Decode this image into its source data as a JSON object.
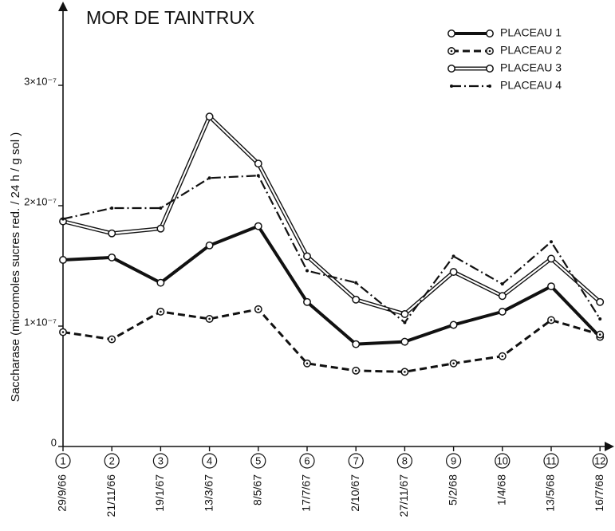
{
  "chart_data": {
    "type": "line",
    "title": "MOR DE TAINTRUX",
    "y_label": "Saccharase (micromoles sucres red. / 24 h / g sol )",
    "x_numbers": [
      "1",
      "2",
      "3",
      "4",
      "5",
      "6",
      "7",
      "8",
      "9",
      "10",
      "11",
      "12"
    ],
    "categories": [
      "29/9/66",
      "21/11/66",
      "19/1/67",
      "13/3/67",
      "8/5/67",
      "17/7/67",
      "2/10/67",
      "27/11/67",
      "5/2/68",
      "1/4/68",
      "13/5/68",
      "16/7/68"
    ],
    "series": [
      {
        "name": "PLACEAU 1",
        "color": "#111111",
        "style": "solid-thick",
        "marker": "open-circle",
        "values": [
          1.55e-07,
          1.57e-07,
          1.36e-07,
          1.67e-07,
          1.83e-07,
          1.2e-07,
          8.5e-08,
          8.7e-08,
          1.01e-07,
          1.12e-07,
          1.33e-07,
          9.1e-08
        ]
      },
      {
        "name": "PLACEAU 2",
        "color": "#111111",
        "style": "dashed",
        "marker": "dot-circle",
        "values": [
          9.5e-08,
          8.9e-08,
          1.12e-07,
          1.06e-07,
          1.14e-07,
          6.9e-08,
          6.3e-08,
          6.2e-08,
          6.9e-08,
          7.5e-08,
          1.05e-07,
          9.3e-08
        ]
      },
      {
        "name": "PLACEAU 3",
        "color": "#111111",
        "style": "double",
        "marker": "open-circle",
        "values": [
          1.87e-07,
          1.77e-07,
          1.81e-07,
          2.74e-07,
          2.35e-07,
          1.58e-07,
          1.22e-07,
          1.1e-07,
          1.45e-07,
          1.25e-07,
          1.56e-07,
          1.2e-07
        ]
      },
      {
        "name": "PLACEAU 4",
        "color": "#111111",
        "style": "dash-dot",
        "marker": "dot",
        "values": [
          1.89e-07,
          1.98e-07,
          1.98e-07,
          2.23e-07,
          2.25e-07,
          1.46e-07,
          1.36e-07,
          1.03e-07,
          1.58e-07,
          1.35e-07,
          1.7e-07,
          1.06e-07
        ]
      }
    ],
    "ylim": [
      0,
      3.6e-07
    ],
    "yticks": [
      0,
      {
        "value": 1e-07,
        "label": "1×10⁻⁷"
      },
      {
        "value": 2e-07,
        "label": "2×10⁻⁷"
      },
      {
        "value": 3e-07,
        "label": "3×10⁻⁷"
      }
    ],
    "grid": false,
    "legend": "top-right"
  }
}
